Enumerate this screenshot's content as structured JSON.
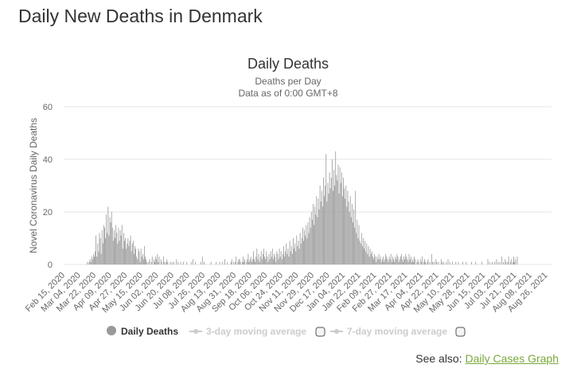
{
  "page": {
    "title": "Daily New Deaths in Denmark",
    "see_also_label": "See also:",
    "see_also_link": "Daily Cases Graph"
  },
  "colors": {
    "bar": "#999999",
    "grid": "#e6e6e6",
    "link": "#7aa83c",
    "legend_inactive": "#cccccc"
  },
  "chart_data": {
    "type": "bar",
    "title": "Daily Deaths",
    "subtitle_1": "Deaths per Day",
    "subtitle_2": "Data as of 0:00 GMT+8",
    "xlabel": "",
    "ylabel": "Novel Coronavirus Daily Deaths",
    "ylim": [
      0,
      60
    ],
    "yticks": [
      0,
      20,
      40,
      60
    ],
    "grid": true,
    "start_date": "Feb 15, 2020",
    "x_tick_labels": [
      "Feb 15, 2020",
      "Mar 04, 2020",
      "Mar 22, 2020",
      "Apr 09, 2020",
      "Apr 27, 2020",
      "May 15, 2020",
      "Jun 02, 2020",
      "Jun 20, 2020",
      "Jul 08, 2020",
      "Jul 26, 2020",
      "Aug 13, 2020",
      "Aug 31, 2020",
      "Sep 18, 2020",
      "Oct 06, 2020",
      "Oct 24, 2020",
      "Nov 11, 2020",
      "Nov 29, 2020",
      "Dec 17, 2020",
      "Jan 04, 2021",
      "Jan 22, 2021",
      "Feb 09, 2021",
      "Feb 27, 2021",
      "Mar 17, 2021",
      "Apr 04, 2021",
      "Apr 22, 2021",
      "May 10, 2021",
      "May 28, 2021",
      "Jun 15, 2021",
      "Jul 03, 2021",
      "Jul 21, 2021",
      "Aug 08, 2021",
      "Aug 26, 2021"
    ],
    "x_tick_step_days": 18,
    "legend": [
      {
        "label": "Daily Deaths",
        "active": true,
        "marker": "circle"
      },
      {
        "label": "3-day moving average",
        "active": false,
        "marker": "line-dot"
      },
      {
        "label": "7-day moving average",
        "active": false,
        "marker": "line-dot"
      }
    ],
    "legend_position": "bottom-center",
    "series": [
      {
        "name": "Daily Deaths",
        "values": [
          0,
          0,
          0,
          0,
          0,
          0,
          0,
          0,
          0,
          0,
          0,
          0,
          0,
          0,
          0,
          0,
          0,
          0,
          0,
          0,
          0,
          0,
          0,
          0,
          0,
          0,
          0,
          1,
          0,
          1,
          2,
          1,
          3,
          2,
          4,
          3,
          5,
          11,
          3,
          8,
          5,
          12,
          10,
          4,
          13,
          8,
          15,
          14,
          10,
          19,
          12,
          22,
          11,
          18,
          16,
          20,
          14,
          9,
          13,
          10,
          15,
          12,
          8,
          14,
          9,
          13,
          11,
          15,
          6,
          12,
          9,
          10,
          6,
          8,
          10,
          7,
          9,
          11,
          5,
          8,
          9,
          4,
          7,
          6,
          3,
          2,
          6,
          5,
          1,
          6,
          3,
          4,
          2,
          7,
          3,
          2,
          1,
          0,
          1,
          2,
          0,
          1,
          3,
          0,
          2,
          1,
          3,
          2,
          4,
          1,
          3,
          0,
          2,
          1,
          0,
          3,
          1,
          0,
          1,
          2,
          1,
          0,
          0,
          1,
          0,
          1,
          0,
          1,
          0,
          0,
          2,
          0,
          1,
          0,
          0,
          1,
          0,
          0,
          1,
          0,
          0,
          0,
          1,
          0,
          0,
          0,
          0,
          1,
          0,
          2,
          0,
          0,
          1,
          0,
          0,
          0,
          0,
          0,
          1,
          0,
          3,
          0,
          1,
          0,
          0,
          0,
          0,
          0,
          0,
          0,
          1,
          0,
          0,
          0,
          0,
          0,
          1,
          0,
          0,
          0,
          1,
          0,
          0,
          1,
          0,
          0,
          2,
          0,
          0,
          1,
          0,
          0,
          0,
          1,
          2,
          0,
          1,
          0,
          1,
          3,
          0,
          1,
          2,
          2,
          1,
          0,
          1,
          3,
          1,
          2,
          0,
          1,
          2,
          4,
          1,
          2,
          3,
          1,
          2,
          5,
          2,
          1,
          3,
          6,
          2,
          4,
          1,
          3,
          5,
          2,
          4,
          6,
          3,
          2,
          5,
          3,
          1,
          4,
          2,
          5,
          3,
          6,
          2,
          4,
          3,
          1,
          5,
          4,
          2,
          6,
          3,
          5,
          2,
          4,
          7,
          3,
          5,
          8,
          4,
          6,
          3,
          9,
          5,
          7,
          4,
          10,
          6,
          8,
          5,
          11,
          7,
          9,
          6,
          12,
          8,
          10,
          14,
          9,
          13,
          11,
          15,
          10,
          16,
          12,
          18,
          14,
          20,
          17,
          23,
          15,
          22,
          19,
          26,
          18,
          25,
          21,
          30,
          24,
          28,
          22,
          33,
          26,
          30,
          42,
          24,
          31,
          27,
          35,
          29,
          33,
          40,
          28,
          36,
          30,
          43,
          34,
          32,
          38,
          27,
          37,
          31,
          35,
          26,
          33,
          29,
          25,
          30,
          22,
          28,
          24,
          20,
          26,
          18,
          23,
          16,
          21,
          14,
          28,
          12,
          17,
          10,
          15,
          9,
          8,
          12,
          7,
          10,
          6,
          9,
          5,
          8,
          4,
          7,
          3,
          6,
          4,
          5,
          3,
          2,
          4,
          3,
          1,
          3,
          2,
          4,
          2,
          3,
          1,
          2,
          3,
          1,
          2,
          4,
          3,
          2,
          1,
          3,
          2,
          4,
          1,
          3,
          2,
          1,
          3,
          2,
          4,
          3,
          1,
          2,
          3,
          4,
          2,
          1,
          3,
          2,
          4,
          3,
          2,
          1,
          4,
          2,
          3,
          1,
          2,
          1,
          3,
          2,
          0,
          1,
          2,
          1,
          0,
          2,
          1,
          3,
          0,
          1,
          2,
          1,
          0,
          1,
          2,
          0,
          1,
          0,
          4,
          1,
          0,
          1,
          0,
          2,
          1,
          0,
          1,
          0,
          0,
          2,
          1,
          0,
          1,
          0,
          0,
          1,
          0,
          2,
          0,
          1,
          0,
          0,
          1,
          0,
          0,
          0,
          1,
          0,
          0,
          1,
          0,
          0,
          0,
          0,
          1,
          0,
          0,
          0,
          1,
          0,
          0,
          0,
          0,
          0,
          1,
          0,
          0,
          0,
          0,
          1,
          0,
          0,
          0,
          0,
          0,
          0,
          1,
          0,
          0,
          0,
          0,
          0,
          0,
          2,
          0,
          1,
          0,
          0,
          1,
          0,
          0,
          1,
          0,
          2,
          0,
          1,
          0,
          1,
          0,
          3,
          0,
          1,
          0,
          2,
          1,
          0,
          1,
          3,
          0,
          1,
          2,
          0,
          1,
          3,
          1,
          2,
          0,
          3
        ]
      }
    ]
  }
}
